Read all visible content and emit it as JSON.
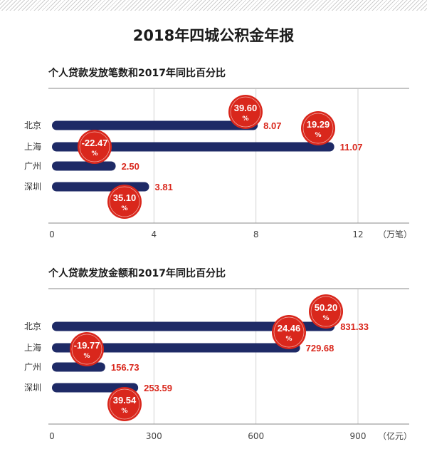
{
  "title": "2018年四城公积金年报",
  "chart_data": [
    {
      "type": "bar",
      "orientation": "horizontal",
      "title": "个人贷款发放笔数和2017年同比百分比",
      "categories": [
        "北京",
        "上海",
        "广州",
        "深圳"
      ],
      "values": [
        8.07,
        11.07,
        2.5,
        3.81
      ],
      "value_labels": [
        "8.07",
        "11.07",
        "2.50",
        "3.81"
      ],
      "yoy_labels": [
        "39.60",
        "19.29",
        "-22.47",
        "35.10"
      ],
      "yoy_unit": "%",
      "x_ticks": [
        "0",
        "4",
        "8",
        "12"
      ],
      "x_tick_values": [
        0,
        4,
        8,
        12
      ],
      "xlim": [
        0,
        12
      ],
      "unit": "（万笔）",
      "colors": {
        "bar": "#1e2a66",
        "badge": "#d9271c",
        "value": "#d9271c"
      }
    },
    {
      "type": "bar",
      "orientation": "horizontal",
      "title": "个人贷款发放金额和2017年同比百分比",
      "categories": [
        "北京",
        "上海",
        "广州",
        "深圳"
      ],
      "values": [
        831.33,
        729.68,
        156.73,
        253.59
      ],
      "value_labels": [
        "831.33",
        "729.68",
        "156.73",
        "253.59"
      ],
      "yoy_labels": [
        "50.20",
        "24.46",
        "-19.77",
        "39.54"
      ],
      "yoy_unit": "%",
      "x_ticks": [
        "0",
        "300",
        "600",
        "900"
      ],
      "x_tick_values": [
        0,
        300,
        600,
        900
      ],
      "xlim": [
        0,
        900
      ],
      "unit": "（亿元）",
      "colors": {
        "bar": "#1e2a66",
        "badge": "#d9271c",
        "value": "#d9271c"
      }
    }
  ]
}
